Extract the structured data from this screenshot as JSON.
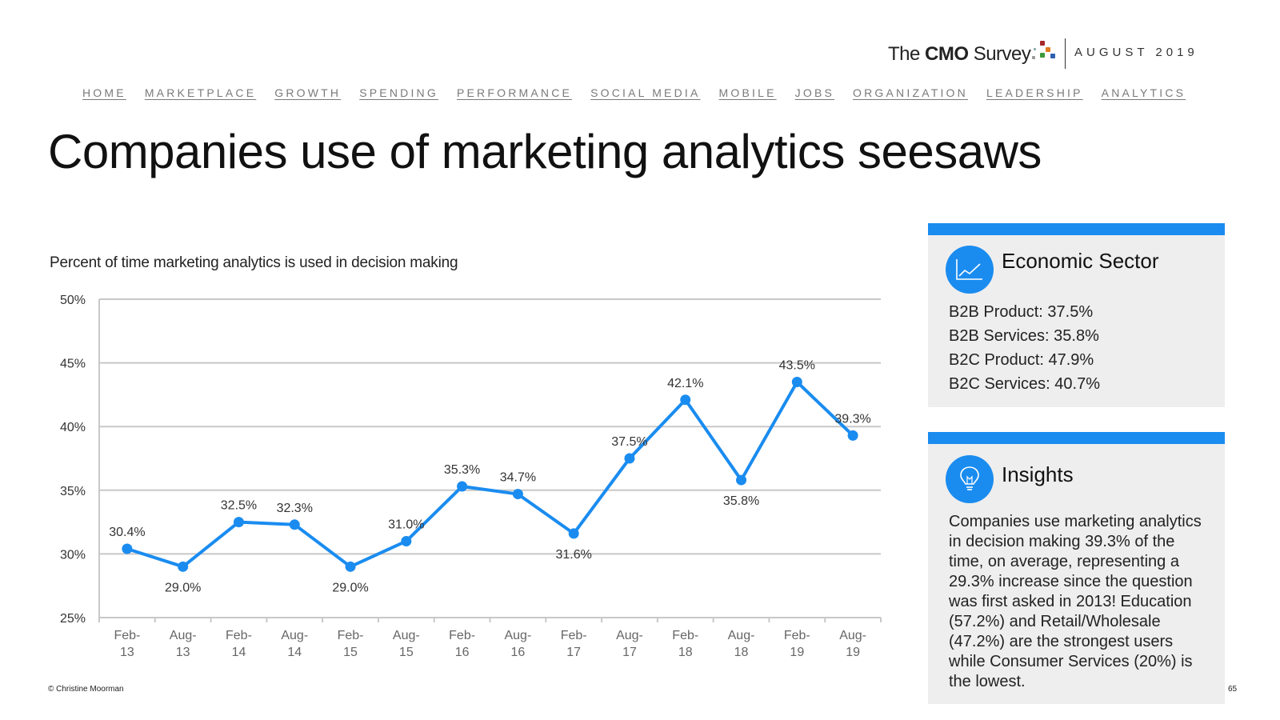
{
  "header": {
    "logo": {
      "prefix": "The",
      "brand": "CMO",
      "suffix": "Survey"
    },
    "issue_date": "AUGUST 2019"
  },
  "nav": [
    "HOME",
    "MARKETPLACE",
    "GROWTH",
    "SPENDING",
    "PERFORMANCE",
    "SOCIAL MEDIA",
    "MOBILE",
    "JOBS",
    "ORGANIZATION",
    "LEADERSHIP",
    "ANALYTICS"
  ],
  "title": "Companies use of marketing analytics seesaws",
  "chart_subtitle": "Percent of time marketing analytics is used in decision making",
  "chart_data": {
    "type": "line",
    "categories": [
      [
        "Feb-",
        "13"
      ],
      [
        "Aug-",
        "13"
      ],
      [
        "Feb-",
        "14"
      ],
      [
        "Aug-",
        "14"
      ],
      [
        "Feb-",
        "15"
      ],
      [
        "Aug-",
        "15"
      ],
      [
        "Feb-",
        "16"
      ],
      [
        "Aug-",
        "16"
      ],
      [
        "Feb-",
        "17"
      ],
      [
        "Aug-",
        "17"
      ],
      [
        "Feb-",
        "18"
      ],
      [
        "Aug-",
        "18"
      ],
      [
        "Feb-",
        "19"
      ],
      [
        "Aug-",
        "19"
      ]
    ],
    "values": [
      30.4,
      29.0,
      32.5,
      32.3,
      29.0,
      31.0,
      35.3,
      34.7,
      31.6,
      37.5,
      42.1,
      35.8,
      43.5,
      39.3
    ],
    "value_labels": [
      "30.4%",
      "29.0%",
      "32.5%",
      "32.3%",
      "29.0%",
      "31.0%",
      "35.3%",
      "34.7%",
      "31.6%",
      "37.5%",
      "42.1%",
      "35.8%",
      "43.5%",
      "39.3%"
    ],
    "label_position": [
      "above",
      "below",
      "above",
      "above",
      "below",
      "above",
      "above",
      "above",
      "below",
      "above",
      "above",
      "below",
      "above",
      "above"
    ],
    "y_ticks": [
      "25%",
      "30%",
      "35%",
      "40%",
      "45%",
      "50%"
    ],
    "ylim": [
      25,
      50
    ],
    "grid": true,
    "color": "#1a8cf0"
  },
  "cards": {
    "sector": {
      "title": "Economic Sector",
      "icon": "line-chart-icon",
      "items": [
        "B2B Product: 37.5%",
        "B2B Services: 35.8%",
        "B2C Product: 47.9%",
        "B2C Services: 40.7%"
      ]
    },
    "insights": {
      "title": "Insights",
      "icon": "lightbulb-icon",
      "body": "Companies use marketing analytics in decision making 39.3% of the time, on average, representing a 29.3% increase since the question was first asked in 2013! Education (57.2%) and Retail/Wholesale (47.2%) are the strongest users while Consumer Services (20%) is the lowest."
    }
  },
  "footer": {
    "copyright": "© Christine Moorman",
    "page_number": "65"
  },
  "colors": {
    "accent": "#1a8cf0",
    "card_bg": "#eeeeee",
    "grid": "#c8c8c8"
  }
}
